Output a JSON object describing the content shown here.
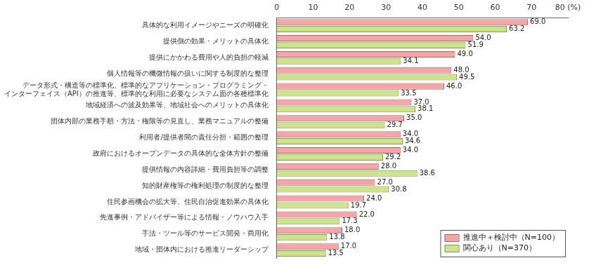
{
  "chart_data": {
    "type": "bar",
    "orientation": "horizontal",
    "categories": [
      "具体的な利用イメージやニーズの明確化",
      "提供側の効果・メリットの具体化",
      "提供にかかわる費用や人的負担の軽減",
      "個人情報等の機微情報の扱いに関する制度的な整理",
      [
        "データ形式・構造等の標準化、標準的なアプリケーション・プログラミング・",
        "インターフェイス（API）の推進等、標準的な利用に必要なシステム面の各種標準化"
      ],
      "地域経済への波及効果等、地域社会へのメリットの具体化",
      "団体内部の業務手順・方法・権限等の見直し、業務マニュアルの整備",
      "利用者/提供者間の責任分担・範囲の整理",
      "政府におけるオープンデータの具体的な全体方針の整備",
      "提供情報の内容詳細・費用負担等の調整",
      "知的財産権等の権利処理の制度的な整理",
      "住民参画機会の拡大等、住民自治促進効果の具体化",
      "先進事例・アドバイザー等による情報・ノウハウ入手",
      "手法・ツール等のサービス開発・商用化",
      "地域・団体内における推進リーダーシップ"
    ],
    "series": [
      {
        "name": "推進中＋検討中（N=100）",
        "color": "#f4a6a6",
        "values": [
          69.0,
          54.0,
          49.0,
          48.0,
          46.0,
          37.0,
          35.0,
          34.0,
          34.0,
          28.0,
          27.0,
          24.0,
          22.0,
          18.0,
          17.0
        ],
        "value_labels": [
          "69.0",
          "54.0",
          "49.0",
          "48.0",
          "46.0",
          "37.0",
          "35.0",
          "34.0",
          "34.0",
          "28.0",
          "27.0",
          "24.0",
          "22.0",
          "18.0",
          "17.0"
        ]
      },
      {
        "name": "関心あり（N=370）",
        "color": "#cde38c",
        "values": [
          63.2,
          51.9,
          34.1,
          49.5,
          33.5,
          38.1,
          29.7,
          34.6,
          29.2,
          38.6,
          30.8,
          19.7,
          17.3,
          13.8,
          13.5
        ],
        "value_labels": [
          "63.2",
          "51.9",
          "34.1",
          "49.5",
          "33.5",
          "38.1",
          "29.7",
          "34.6",
          "29.2",
          "38.6",
          "30.8",
          "19.7",
          "17.3",
          "13.8",
          "13.5"
        ]
      }
    ],
    "xlim": [
      0,
      80
    ],
    "xticks": [
      0,
      10,
      20,
      30,
      40,
      50,
      60,
      70,
      {
        "value": 80,
        "label": "80 (%)"
      }
    ],
    "grid": false,
    "legend": "lower right",
    "data_labels": true
  }
}
